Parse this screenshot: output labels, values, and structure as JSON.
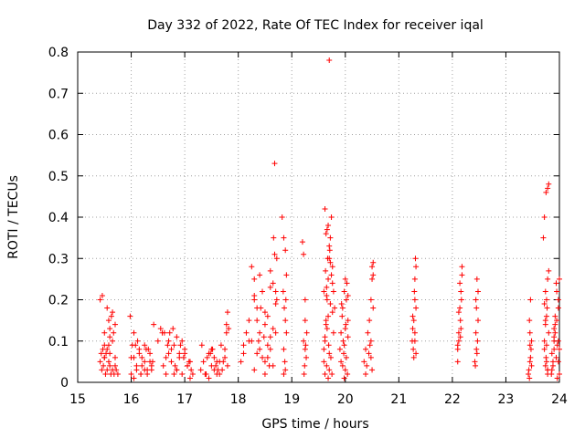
{
  "chart_data": {
    "type": "scatter",
    "title": "Day 332 of 2022, Rate Of TEC Index for receiver iqal",
    "xlabel": "GPS time / hours",
    "ylabel": "ROTI / TECUs",
    "xlim": [
      15,
      24
    ],
    "ylim": [
      0,
      0.8
    ],
    "xticks": [
      "15",
      "16",
      "17",
      "18",
      "19",
      "20",
      "21",
      "22",
      "23",
      "24"
    ],
    "yticks": [
      "0",
      "0.1",
      "0.2",
      "0.3",
      "0.4",
      "0.5",
      "0.6",
      "0.7",
      "0.8"
    ],
    "grid": true,
    "marker": "+",
    "color": "#ff0000",
    "series": [
      {
        "x": [
          15.42,
          15.45,
          15.48,
          15.5,
          15.52,
          15.55,
          15.58,
          15.6,
          15.62,
          15.65,
          15.68,
          15.7,
          15.72,
          15.75,
          15.46,
          15.5,
          15.55,
          15.58,
          15.6,
          15.65,
          15.7,
          15.5,
          15.55,
          15.6,
          15.65,
          15.47,
          15.5,
          15.53,
          15.58,
          15.6,
          15.63,
          15.67,
          15.7,
          15.42,
          15.44,
          16.0,
          16.05,
          16.1,
          16.15,
          16.2,
          16.25,
          16.3,
          16.35,
          16.4,
          15.98,
          16.05,
          16.12,
          16.18,
          16.25,
          16.32,
          16.38,
          16.02,
          16.1,
          16.2,
          16.3,
          16.05,
          16.15,
          16.25,
          16.35,
          16.08,
          16.18,
          16.28,
          16.38,
          16.0,
          16.42,
          16.5,
          16.55,
          16.58,
          16.6,
          16.65,
          16.7,
          16.75,
          16.8,
          16.85,
          16.9,
          16.95,
          17.0,
          17.05,
          17.1,
          16.62,
          16.7,
          16.78,
          16.85,
          16.92,
          17.0,
          17.08,
          16.65,
          16.75,
          16.85,
          16.95,
          17.05,
          16.72,
          16.8,
          16.9,
          17.1,
          17.12,
          17.15,
          16.68,
          16.82,
          16.98,
          17.3,
          17.35,
          17.4,
          17.45,
          17.5,
          17.55,
          17.6,
          17.65,
          17.7,
          17.75,
          17.8,
          17.32,
          17.42,
          17.52,
          17.62,
          17.72,
          17.38,
          17.48,
          17.58,
          17.68,
          17.78,
          17.45,
          17.55,
          17.65,
          17.75,
          17.8,
          17.78,
          17.82,
          17.5,
          17.6,
          18.05,
          18.1,
          18.15,
          18.2,
          18.25,
          18.3,
          18.35,
          18.4,
          18.45,
          18.5,
          18.55,
          18.6,
          18.65,
          18.7,
          18.25,
          18.3,
          18.35,
          18.4,
          18.5,
          18.55,
          18.6,
          18.65,
          18.3,
          18.4,
          18.5,
          18.6,
          18.2,
          18.35,
          18.45,
          18.55,
          18.65,
          18.1,
          18.3,
          18.5,
          18.6,
          18.7,
          18.42,
          18.58,
          18.38,
          18.48,
          18.68,
          18.66,
          18.72,
          18.7,
          18.68,
          18.72,
          18.82,
          18.85,
          18.88,
          18.9,
          18.84,
          18.86,
          18.88,
          18.9,
          18.85,
          18.87,
          18.88,
          18.85,
          18.89,
          19.2,
          19.22,
          19.25,
          19.28,
          19.22,
          19.25,
          19.27,
          19.24,
          19.26,
          19.23,
          19.25,
          19.6,
          19.62,
          19.64,
          19.66,
          19.68,
          19.7,
          19.72,
          19.74,
          19.76,
          19.78,
          19.8,
          19.62,
          19.66,
          19.7,
          19.74,
          19.78,
          19.6,
          19.65,
          19.7,
          19.75,
          19.64,
          19.68,
          19.72,
          19.76,
          19.63,
          19.67,
          19.71,
          19.65,
          19.69,
          19.73,
          19.62,
          19.66,
          19.7,
          19.6,
          19.64,
          19.68,
          19.72,
          19.76,
          19.7,
          19.65,
          19.62,
          19.68,
          19.9,
          19.92,
          19.95,
          19.98,
          20.0,
          20.02,
          20.05,
          19.92,
          19.96,
          20.0,
          20.04,
          19.94,
          19.98,
          20.02,
          19.95,
          20.0,
          20.05,
          19.93,
          19.97,
          20.01,
          20.03,
          20.05,
          19.98,
          20.35,
          20.38,
          20.42,
          20.45,
          20.48,
          20.5,
          20.52,
          20.4,
          20.44,
          20.48,
          20.5,
          20.52,
          20.38,
          20.46,
          20.5,
          20.48,
          20.52,
          21.25,
          21.28,
          21.3,
          21.32,
          21.26,
          21.29,
          21.31,
          21.27,
          21.3,
          21.32,
          21.28,
          21.3,
          21.26,
          21.3,
          21.32,
          22.1,
          22.12,
          22.14,
          22.16,
          22.18,
          22.12,
          22.15,
          22.17,
          22.1,
          22.14,
          22.18,
          22.12,
          22.16,
          22.1,
          22.15,
          22.42,
          22.45,
          22.48,
          22.44,
          22.46,
          22.43,
          22.47,
          22.45,
          22.44,
          22.48,
          22.46,
          23.42,
          23.45,
          23.48,
          23.44,
          23.46,
          23.43,
          23.47,
          23.45,
          23.44,
          23.48,
          23.46,
          23.45,
          23.7,
          23.72,
          23.75,
          23.78,
          23.8,
          23.74,
          23.77,
          23.72,
          23.76,
          23.8,
          23.74,
          23.78,
          23.72,
          23.75,
          23.78,
          23.76,
          23.74,
          23.8,
          23.76,
          23.78,
          23.74,
          23.72,
          23.76,
          23.78,
          23.85,
          23.88,
          23.9,
          23.92,
          23.95,
          23.98,
          24.0,
          23.86,
          23.9,
          23.94,
          23.98,
          23.88,
          23.92,
          23.96,
          24.0,
          23.9,
          23.95,
          23.86,
          23.92,
          23.98,
          23.9,
          23.96,
          24.0,
          23.94,
          23.98
        ],
        "y": [
          0.05,
          0.03,
          0.04,
          0.06,
          0.02,
          0.03,
          0.05,
          0.04,
          0.02,
          0.03,
          0.02,
          0.04,
          0.03,
          0.02,
          0.21,
          0.12,
          0.18,
          0.15,
          0.11,
          0.17,
          0.14,
          0.09,
          0.08,
          0.07,
          0.1,
          0.08,
          0.06,
          0.07,
          0.09,
          0.13,
          0.16,
          0.12,
          0.06,
          0.2,
          0.07,
          0.02,
          0.06,
          0.03,
          0.08,
          0.04,
          0.09,
          0.03,
          0.07,
          0.05,
          0.16,
          0.12,
          0.1,
          0.02,
          0.05,
          0.08,
          0.03,
          0.09,
          0.04,
          0.06,
          0.02,
          0.01,
          0.07,
          0.03,
          0.05,
          0.09,
          0.02,
          0.08,
          0.04,
          0.06,
          0.14,
          0.1,
          0.13,
          0.12,
          0.04,
          0.02,
          0.07,
          0.05,
          0.09,
          0.03,
          0.06,
          0.02,
          0.08,
          0.04,
          0.01,
          0.12,
          0.1,
          0.13,
          0.11,
          0.09,
          0.07,
          0.05,
          0.06,
          0.08,
          0.03,
          0.1,
          0.04,
          0.12,
          0.02,
          0.07,
          0.05,
          0.03,
          0.02,
          0.09,
          0.04,
          0.06,
          0.03,
          0.05,
          0.02,
          0.07,
          0.04,
          0.06,
          0.02,
          0.05,
          0.03,
          0.08,
          0.04,
          0.09,
          0.06,
          0.08,
          0.03,
          0.05,
          0.02,
          0.07,
          0.04,
          0.09,
          0.12,
          0.01,
          0.03,
          0.02,
          0.06,
          0.17,
          0.14,
          0.13,
          0.08,
          0.05,
          0.05,
          0.09,
          0.12,
          0.15,
          0.1,
          0.25,
          0.18,
          0.08,
          0.22,
          0.14,
          0.06,
          0.11,
          0.04,
          0.19,
          0.28,
          0.2,
          0.07,
          0.26,
          0.17,
          0.09,
          0.23,
          0.13,
          0.03,
          0.12,
          0.05,
          0.08,
          0.1,
          0.15,
          0.06,
          0.16,
          0.24,
          0.07,
          0.21,
          0.02,
          0.27,
          0.12,
          0.18,
          0.04,
          0.1,
          0.11,
          0.53,
          0.35,
          0.3,
          0.22,
          0.31,
          0.2,
          0.4,
          0.35,
          0.32,
          0.26,
          0.22,
          0.18,
          0.15,
          0.12,
          0.08,
          0.05,
          0.03,
          0.02,
          0.2,
          0.34,
          0.31,
          0.2,
          0.12,
          0.1,
          0.08,
          0.06,
          0.04,
          0.09,
          0.02,
          0.15,
          0.08,
          0.1,
          0.15,
          0.2,
          0.25,
          0.3,
          0.35,
          0.4,
          0.28,
          0.22,
          0.18,
          0.42,
          0.37,
          0.33,
          0.26,
          0.12,
          0.05,
          0.04,
          0.03,
          0.02,
          0.14,
          0.16,
          0.19,
          0.24,
          0.27,
          0.3,
          0.32,
          0.21,
          0.09,
          0.06,
          0.11,
          0.13,
          0.07,
          0.22,
          0.36,
          0.38,
          0.29,
          0.17,
          0.78,
          0.23,
          0.02,
          0.01,
          0.08,
          0.12,
          0.18,
          0.22,
          0.25,
          0.2,
          0.15,
          0.05,
          0.1,
          0.03,
          0.02,
          0.16,
          0.09,
          0.06,
          0.04,
          0.13,
          0.11,
          0.19,
          0.07,
          0.14,
          0.24,
          0.21,
          0.01,
          0.05,
          0.08,
          0.12,
          0.15,
          0.2,
          0.28,
          0.26,
          0.04,
          0.07,
          0.1,
          0.03,
          0.18,
          0.02,
          0.09,
          0.25,
          0.06,
          0.29,
          0.1,
          0.15,
          0.2,
          0.28,
          0.13,
          0.22,
          0.3,
          0.08,
          0.12,
          0.18,
          0.06,
          0.25,
          0.16,
          0.1,
          0.07,
          0.08,
          0.12,
          0.18,
          0.22,
          0.28,
          0.1,
          0.15,
          0.2,
          0.05,
          0.24,
          0.26,
          0.17,
          0.13,
          0.09,
          0.11,
          0.05,
          0.08,
          0.15,
          0.2,
          0.25,
          0.04,
          0.1,
          0.18,
          0.12,
          0.22,
          0.07,
          0.02,
          0.05,
          0.1,
          0.15,
          0.2,
          0.03,
          0.08,
          0.12,
          0.01,
          0.04,
          0.06,
          0.09,
          0.35,
          0.4,
          0.46,
          0.47,
          0.48,
          0.22,
          0.18,
          0.08,
          0.05,
          0.12,
          0.15,
          0.25,
          0.1,
          0.06,
          0.03,
          0.2,
          0.14,
          0.27,
          0.09,
          0.03,
          0.04,
          0.19,
          0.16,
          0.02,
          0.02,
          0.05,
          0.08,
          0.12,
          0.15,
          0.2,
          0.25,
          0.03,
          0.1,
          0.06,
          0.18,
          0.04,
          0.14,
          0.09,
          0.02,
          0.11,
          0.22,
          0.07,
          0.16,
          0.05,
          0.13,
          0.01,
          0.08,
          0.24,
          0.1
        ]
      }
    ]
  }
}
